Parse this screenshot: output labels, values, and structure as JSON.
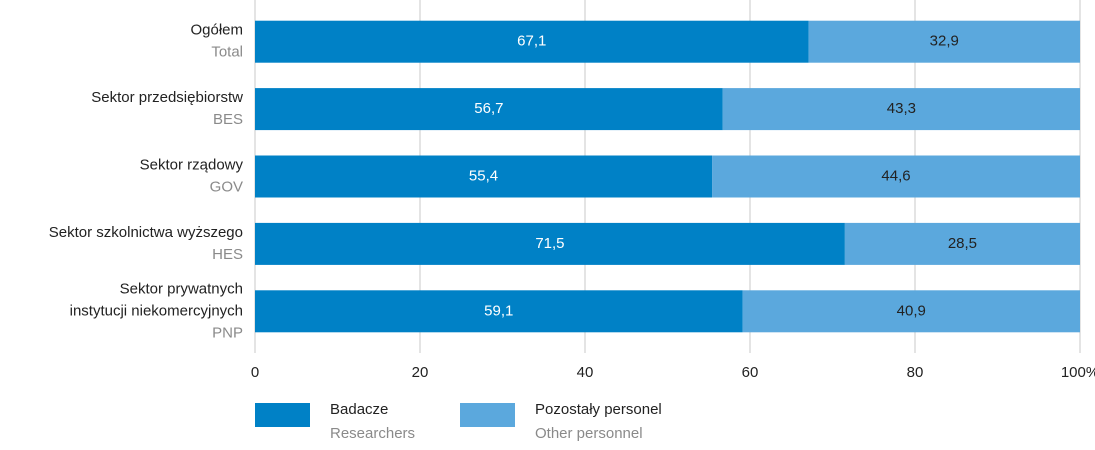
{
  "chart_data": {
    "type": "stacked_barh",
    "categories": [
      "Ogółem",
      "Sektor przedsiębiorstw",
      "Sektor rządowy",
      "Sektor szkolnictwa wyższego",
      "Sektor prywatnych instytucji niekomercyjnych"
    ],
    "category_subtitles": [
      "Total",
      "BES",
      "GOV",
      "HES",
      "PNP"
    ],
    "series": [
      {
        "name": "Badacze",
        "subtitle": "Researchers",
        "color": "#0081c6",
        "values": [
          67.1,
          56.7,
          55.4,
          71.5,
          59.1
        ],
        "value_labels": [
          "67,1",
          "56,7",
          "55,4",
          "71,5",
          "59,1"
        ]
      },
      {
        "name": "Pozostały personel",
        "subtitle": "Other personnel",
        "color": "#5ba8dd",
        "values": [
          32.9,
          43.3,
          44.6,
          28.5,
          40.9
        ],
        "value_labels": [
          "32,9",
          "43,3",
          "44,6",
          "28,5",
          "40,9"
        ]
      }
    ],
    "xlim": [
      0,
      100
    ],
    "xticks": [
      0,
      20,
      40,
      60,
      80,
      {
        "value": 100,
        "label": "100%"
      }
    ],
    "grid": true,
    "legend": "bottom-left"
  }
}
